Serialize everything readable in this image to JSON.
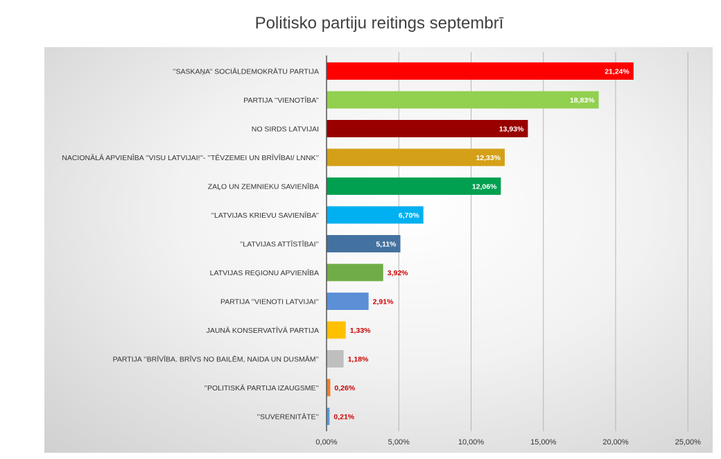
{
  "chart_data": {
    "type": "bar",
    "orientation": "horizontal",
    "title": "Politisko partiju reitings septembrī",
    "xlabel": "",
    "ylabel": "",
    "xlim": [
      0,
      25
    ],
    "x_ticks": [
      "0,00%",
      "5,00%",
      "10,00%",
      "15,00%",
      "20,00%",
      "25,00%"
    ],
    "grid": "vertical",
    "legend": "none",
    "categories": [
      "’’SASKAŅA’’ SOCIĀLDEMOKRĀTU PARTIJA",
      "PARTIJA ’’VIENOTĪBA’’",
      "NO SIRDS LATVIJAI",
      "NACIONĀLĀ APVIENĪBA ’’VISU LATVIJAI!’’- ’’TĒVZEMEI UN BRĪVĪBAI/ LNNK’’",
      "ZAĻO UN ZEMNIEKU SAVIENĪBA",
      "’’LATVIJAS KRIEVU SAVIENĪBA’’",
      "’’LATVIJAS ATTĪSTĪBAI’’",
      "LATVIJAS REĢIONU APVIENĪBA",
      "PARTIJA ’’VIENOTI LATVIJAI’’",
      "JAUNĀ KONSERVATĪVĀ PARTIJA",
      "PARTIJA ’’BRĪVĪBA. BRĪVS NO BAILĒM, NAIDA UN DUSMĀM’’",
      "’’POLITISKĀ PARTIJA IZAUGSME’’",
      "’’SUVERENITĀTE’’"
    ],
    "values": [
      21.24,
      18.83,
      13.93,
      12.33,
      12.06,
      6.7,
      5.11,
      3.92,
      2.91,
      1.33,
      1.18,
      0.26,
      0.21
    ],
    "value_labels": [
      "21,24%",
      "18,83%",
      "13,93%",
      "12,33%",
      "12,06%",
      "6,70%",
      "5,11%",
      "3,92%",
      "2,91%",
      "1,33%",
      "1,18%",
      "0,26%",
      "0,21%"
    ],
    "colors": [
      "#ff0000",
      "#92d050",
      "#990000",
      "#d4a017",
      "#00a050",
      "#00b0f0",
      "#4472a0",
      "#70ad47",
      "#5b8fd6",
      "#ffc000",
      "#bfbfbf",
      "#ed7d31",
      "#5b9bd5"
    ],
    "value_label_colors": [
      "#ffffff",
      "#ffffff",
      "#ffffff",
      "#ffffff",
      "#ffffff",
      "#ffffff",
      "#ffffff",
      "#cc0000",
      "#cc0000",
      "#cc0000",
      "#cc0000",
      "#cc0000",
      "#cc0000"
    ]
  }
}
